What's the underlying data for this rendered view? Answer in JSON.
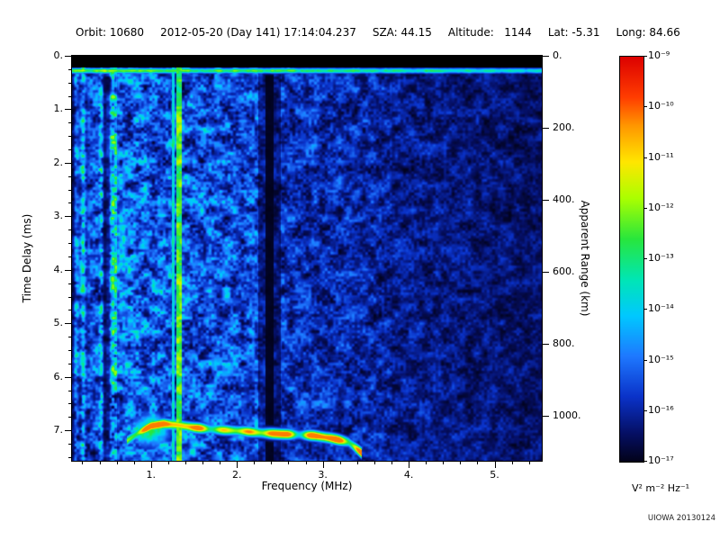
{
  "header": {
    "segments": [
      "Orbit: 10680",
      "2012-05-20 (Day 141) 17:14:04.237",
      "SZA: 44.15",
      "Altitude:   1144",
      "Lat: -5.31",
      "Long: 84.66"
    ]
  },
  "plot": {
    "x_axis": {
      "label": "Frequency (MHz)",
      "ticks": [
        "1.",
        "2.",
        "3.",
        "4.",
        "5."
      ],
      "tick_values": [
        1,
        2,
        3,
        4,
        5
      ],
      "minor_step": 0.2
    },
    "y_left": {
      "label": "Time Delay (ms)",
      "ticks": [
        "0.",
        "1.",
        "2.",
        "3.",
        "4.",
        "5.",
        "6.",
        "7."
      ],
      "tick_values": [
        0,
        1,
        2,
        3,
        4,
        5,
        6,
        7
      ],
      "minor_step": 0.25
    },
    "y_right": {
      "label": "Apparent Range (km)",
      "ticks": [
        "0.",
        "200.",
        "400.",
        "600.",
        "800.",
        "1000."
      ],
      "tick_values": [
        0,
        200,
        400,
        600,
        800,
        1000
      ]
    }
  },
  "colorbar": {
    "labels": [
      "10⁻⁹",
      "10⁻¹⁰",
      "10⁻¹¹",
      "10⁻¹²",
      "10⁻¹³",
      "10⁻¹⁴",
      "10⁻¹⁵",
      "10⁻¹⁶",
      "10⁻¹⁷"
    ],
    "unit": "V² m⁻² Hz⁻¹",
    "scale": "log"
  },
  "credit": "UIOWA 20130124",
  "chart_data": {
    "type": "heatmap",
    "title": "Radar sounder ionogram, Orbit 10680, 2012-05-20 17:14:04.237",
    "xlabel": "Frequency (MHz)",
    "ylabel_left": "Time Delay (ms)",
    "ylabel_right": "Apparent Range (km)",
    "x_range_mhz": [
      0.08,
      5.55
    ],
    "y_range_ms": [
      0,
      7.57
    ],
    "right_range_km": [
      0,
      1125
    ],
    "color_scale": {
      "min": "1e-17",
      "max": "1e-9",
      "units": "V² m⁻² Hz⁻¹",
      "scale": "log"
    },
    "colormap_stops": [
      [
        0.0,
        2,
        2,
        25
      ],
      [
        0.07,
        5,
        15,
        100
      ],
      [
        0.16,
        10,
        50,
        200
      ],
      [
        0.26,
        30,
        120,
        255
      ],
      [
        0.36,
        0,
        200,
        255
      ],
      [
        0.45,
        0,
        230,
        180
      ],
      [
        0.55,
        40,
        230,
        60
      ],
      [
        0.65,
        170,
        255,
        0
      ],
      [
        0.74,
        255,
        230,
        0
      ],
      [
        0.83,
        255,
        150,
        0
      ],
      [
        0.9,
        255,
        60,
        0
      ],
      [
        1.0,
        220,
        0,
        0
      ]
    ],
    "features": {
      "background": {
        "base": 1.05,
        "slope": 0.55,
        "bright_band": [
          0.55,
          2.35,
          0.12
        ],
        "high_freq_dim_mhz": 3.8,
        "high_freq_mult": 0.88
      },
      "top_black_band_ms": 0.22,
      "surface_echo": {
        "delay_ms": 0.28,
        "half_width_ms": 0.05,
        "intensity": 0.62
      },
      "left_stripe_region_mhz": 0.6,
      "bright_vlines_mhz": [
        {
          "f": 1.33,
          "w": 0.03,
          "p": 0.58
        },
        {
          "f": 1.26,
          "w": 0.012,
          "p": 0.42
        }
      ],
      "dark_vlines_mhz": [
        {
          "f": 2.38,
          "w": 0.045,
          "mult": 0.18
        },
        {
          "f": 2.38,
          "w": 0.13,
          "mult": 0.6
        }
      ],
      "ionosphere_trace": {
        "points_f_ms": [
          [
            0.72,
            7.2
          ],
          [
            0.85,
            7.05
          ],
          [
            1.0,
            6.92
          ],
          [
            1.15,
            6.88
          ],
          [
            1.3,
            6.9
          ],
          [
            1.5,
            6.95
          ],
          [
            1.7,
            6.98
          ],
          [
            1.9,
            7.0
          ],
          [
            2.1,
            7.02
          ],
          [
            2.3,
            7.05
          ],
          [
            2.5,
            7.07
          ],
          [
            2.7,
            7.08
          ],
          [
            2.9,
            7.1
          ],
          [
            3.1,
            7.15
          ],
          [
            3.3,
            7.22
          ],
          [
            3.45,
            7.42
          ]
        ],
        "half_width_ms": 0.09,
        "intensity": 0.78
      },
      "trace_blob": {
        "f": 1.0,
        "delay_ms": 7.0,
        "rf": 0.25,
        "rd": 0.35,
        "intensity": 0.55
      }
    }
  }
}
